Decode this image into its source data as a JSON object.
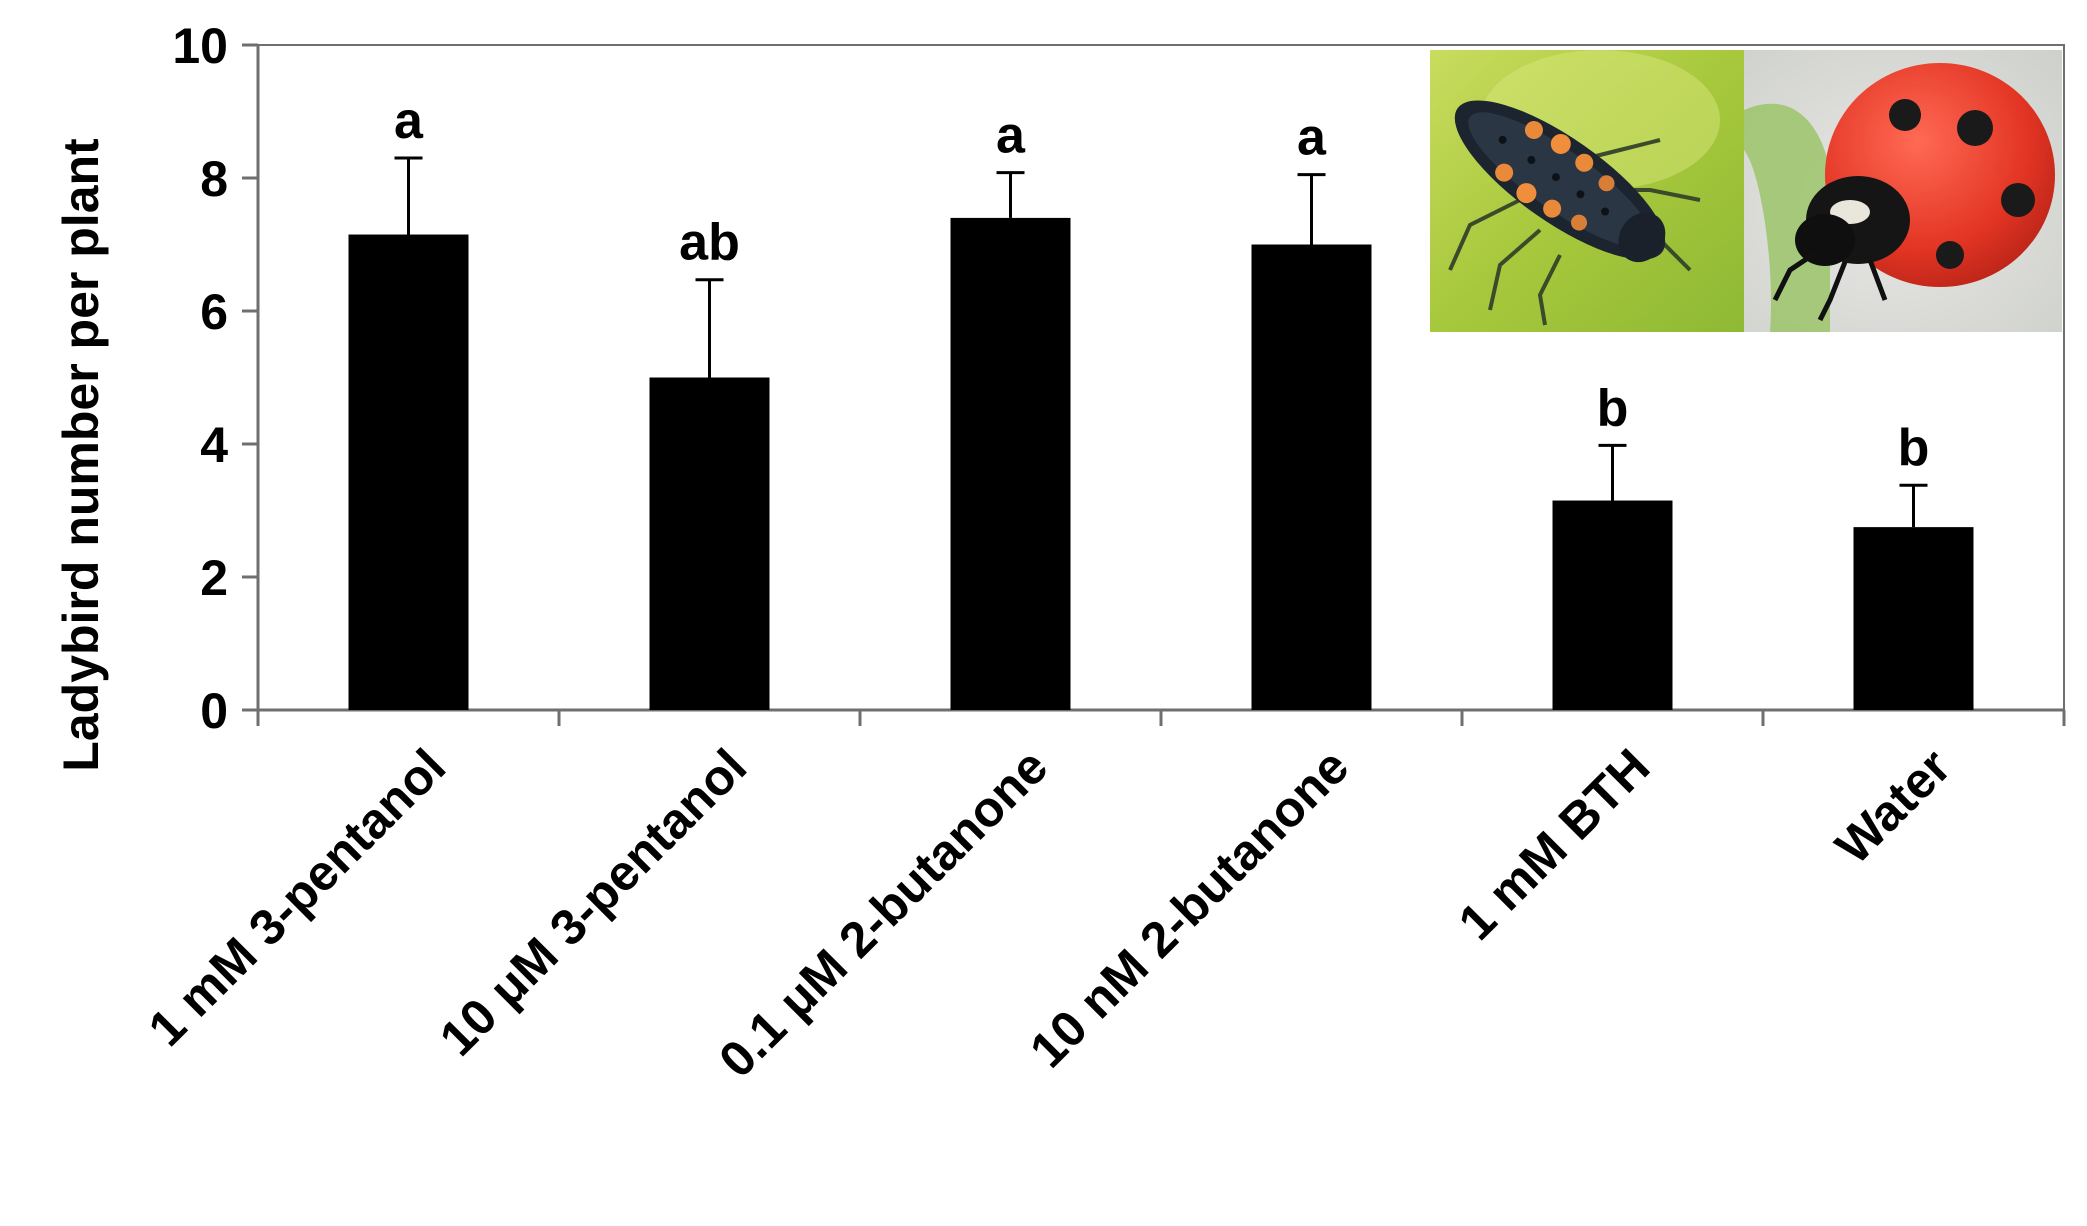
{
  "chart_data": {
    "type": "bar",
    "title": "",
    "xlabel": "",
    "ylabel": "Ladybird number per plant",
    "ylim": [
      0,
      10
    ],
    "yticks": [
      0,
      2,
      4,
      6,
      8,
      10
    ],
    "grid": false,
    "legend": "none",
    "bar_color": "#000000",
    "categories": [
      "1 mM 3-pentanol",
      "10 μM 3-pentanol",
      "0.1 μM 2-butanone",
      "10 nM 2-butanone",
      "1 mM BTH",
      "Water"
    ],
    "values": [
      7.15,
      5.0,
      7.4,
      7.0,
      3.15,
      2.75
    ],
    "error_upper": [
      8.3,
      6.47,
      8.08,
      8.05,
      3.98,
      3.38
    ],
    "significance_letters": [
      "a",
      "ab",
      "a",
      "a",
      "b",
      "b"
    ],
    "inset_images": [
      "ladybird-larva-photo",
      "ladybird-adult-photo"
    ]
  }
}
